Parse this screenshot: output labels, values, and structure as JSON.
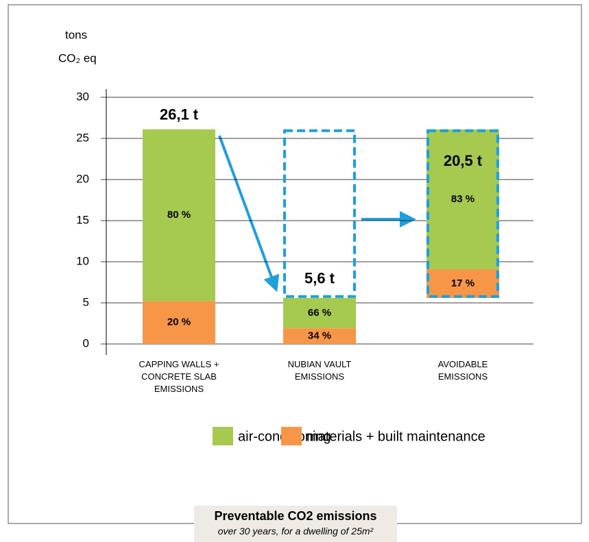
{
  "chart_data": {
    "type": "bar",
    "title": "Preventable CO2 emissions",
    "subtitle": "over 30 years, for a dwelling of 25m²",
    "y_label": [
      "tons",
      "CO₂ eq"
    ],
    "categories": [
      "CAPPING WALLS + CONCRETE SLAB EMISSIONS",
      "NUBIAN VAULT EMISSIONS",
      "AVOIDABLE EMISSIONS"
    ],
    "totals": [
      26.1,
      5.6,
      20.5
    ],
    "total_labels": [
      "26,1 t",
      "5,6 t",
      "20,5 t"
    ],
    "series": [
      {
        "name": "materials + built maintenance",
        "color": "#f79646",
        "values": [
          20,
          34,
          17
        ],
        "value_labels": [
          "20 %",
          "34 %",
          "17 %"
        ]
      },
      {
        "name": "air-conditioning",
        "color": "#a6c94f",
        "values": [
          80,
          66,
          83
        ],
        "value_labels": [
          "80 %",
          "66 %",
          "83 %"
        ]
      }
    ],
    "ylim": [
      0,
      30
    ],
    "yticks": [
      0,
      5,
      10,
      15,
      20,
      25,
      30
    ],
    "grid": true
  }
}
